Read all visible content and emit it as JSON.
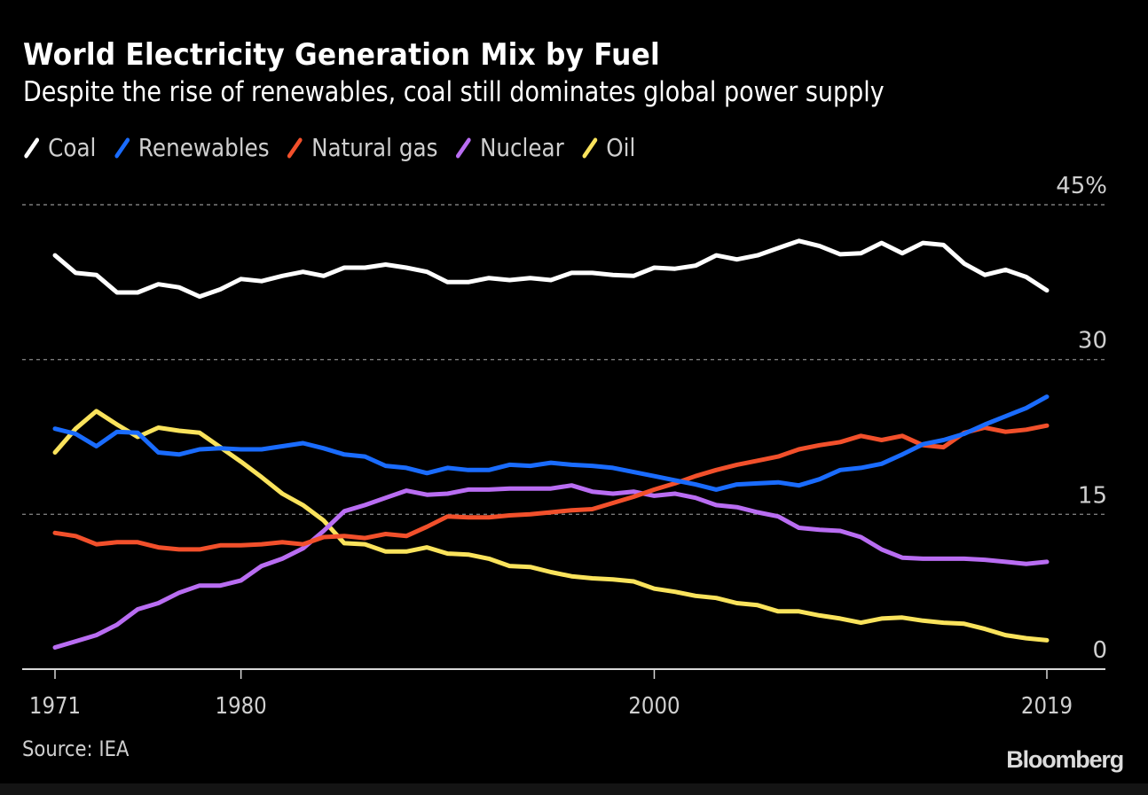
{
  "header": {
    "title": "World Electricity Generation Mix by Fuel",
    "subtitle": "Despite the rise of renewables, coal still dominates global power supply"
  },
  "footer": {
    "source": "Source: IEA",
    "logo": "Bloomberg"
  },
  "chart_data": {
    "type": "line",
    "title": "World Electricity Generation Mix by Fuel",
    "subtitle": "Despite the rise of renewables, coal still dominates global power supply",
    "xlabel": "",
    "ylabel": "",
    "x": [
      1971,
      1972,
      1973,
      1974,
      1975,
      1976,
      1977,
      1978,
      1979,
      1980,
      1981,
      1982,
      1983,
      1984,
      1985,
      1986,
      1987,
      1988,
      1989,
      1990,
      1991,
      1992,
      1993,
      1994,
      1995,
      1996,
      1997,
      1998,
      1999,
      2000,
      2001,
      2002,
      2003,
      2004,
      2005,
      2006,
      2007,
      2008,
      2009,
      2010,
      2011,
      2012,
      2013,
      2014,
      2015,
      2016,
      2017,
      2018,
      2019
    ],
    "xlim": [
      1971,
      2019
    ],
    "ylim": [
      0,
      45
    ],
    "x_ticks": [
      {
        "value": 1971,
        "label": "1971"
      },
      {
        "value": 1980,
        "label": "1980"
      },
      {
        "value": 2000,
        "label": "2000"
      },
      {
        "value": 2019,
        "label": "2019"
      }
    ],
    "y_ticks": [
      {
        "value": 45,
        "label": "45%"
      },
      {
        "value": 30,
        "label": "30"
      },
      {
        "value": 15,
        "label": "15"
      },
      {
        "value": 0,
        "label": "0"
      }
    ],
    "grid": "horizontal dotted",
    "legend_position": "top-left",
    "series": [
      {
        "name": "Coal",
        "color": "#ffffff",
        "values": [
          40.1,
          38.4,
          38.2,
          36.5,
          36.5,
          37.3,
          37.0,
          36.1,
          36.8,
          37.8,
          37.6,
          38.1,
          38.5,
          38.1,
          38.9,
          38.9,
          39.2,
          38.9,
          38.5,
          37.5,
          37.5,
          37.9,
          37.7,
          37.9,
          37.7,
          38.4,
          38.4,
          38.2,
          38.1,
          38.9,
          38.8,
          39.1,
          40.1,
          39.7,
          40.1,
          40.8,
          41.5,
          41.0,
          40.2,
          40.3,
          41.3,
          40.3,
          41.3,
          41.1,
          39.3,
          38.2,
          38.7,
          38.0,
          36.7
        ]
      },
      {
        "name": "Renewables",
        "color": "#1a6cff",
        "values": [
          23.3,
          22.8,
          21.6,
          23.0,
          22.9,
          21.0,
          20.8,
          21.3,
          21.4,
          21.3,
          21.3,
          21.6,
          21.9,
          21.4,
          20.8,
          20.6,
          19.7,
          19.5,
          19.0,
          19.5,
          19.3,
          19.3,
          19.8,
          19.7,
          20.0,
          19.8,
          19.7,
          19.5,
          19.1,
          18.7,
          18.3,
          17.9,
          17.4,
          17.9,
          18.0,
          18.1,
          17.8,
          18.4,
          19.3,
          19.5,
          19.9,
          20.8,
          21.8,
          22.2,
          22.8,
          23.7,
          24.5,
          25.3,
          26.4
        ]
      },
      {
        "name": "Natural gas",
        "color": "#f2502b",
        "values": [
          13.2,
          12.9,
          12.1,
          12.3,
          12.3,
          11.8,
          11.6,
          11.6,
          12.0,
          12.0,
          12.1,
          12.3,
          12.1,
          12.8,
          12.9,
          12.7,
          13.1,
          12.9,
          13.8,
          14.8,
          14.7,
          14.7,
          14.9,
          15.0,
          15.2,
          15.4,
          15.5,
          16.1,
          16.7,
          17.4,
          18.0,
          18.7,
          19.3,
          19.8,
          20.2,
          20.6,
          21.3,
          21.7,
          22.0,
          22.6,
          22.2,
          22.6,
          21.7,
          21.5,
          22.9,
          23.4,
          23.0,
          23.2,
          23.6
        ]
      },
      {
        "name": "Nuclear",
        "color": "#b96df2",
        "values": [
          2.1,
          2.7,
          3.3,
          4.3,
          5.8,
          6.4,
          7.4,
          8.1,
          8.1,
          8.6,
          10.0,
          10.7,
          11.7,
          13.4,
          15.3,
          15.9,
          16.6,
          17.3,
          16.9,
          17.0,
          17.4,
          17.4,
          17.5,
          17.5,
          17.5,
          17.8,
          17.2,
          17.0,
          17.2,
          16.8,
          17.0,
          16.6,
          15.9,
          15.7,
          15.2,
          14.8,
          13.7,
          13.5,
          13.4,
          12.8,
          11.6,
          10.8,
          10.7,
          10.7,
          10.7,
          10.6,
          10.4,
          10.2,
          10.4
        ]
      },
      {
        "name": "Oil",
        "color": "#fae35c",
        "values": [
          21.0,
          23.3,
          25.0,
          23.7,
          22.5,
          23.4,
          23.1,
          22.9,
          21.5,
          20.1,
          18.6,
          17.0,
          15.9,
          14.4,
          12.2,
          12.1,
          11.4,
          11.4,
          11.8,
          11.2,
          11.1,
          10.7,
          10.0,
          9.9,
          9.4,
          9.0,
          8.8,
          8.7,
          8.5,
          7.8,
          7.5,
          7.1,
          6.9,
          6.4,
          6.2,
          5.6,
          5.6,
          5.2,
          4.9,
          4.5,
          4.9,
          5.0,
          4.7,
          4.5,
          4.4,
          3.9,
          3.3,
          3.0,
          2.8
        ]
      }
    ]
  }
}
